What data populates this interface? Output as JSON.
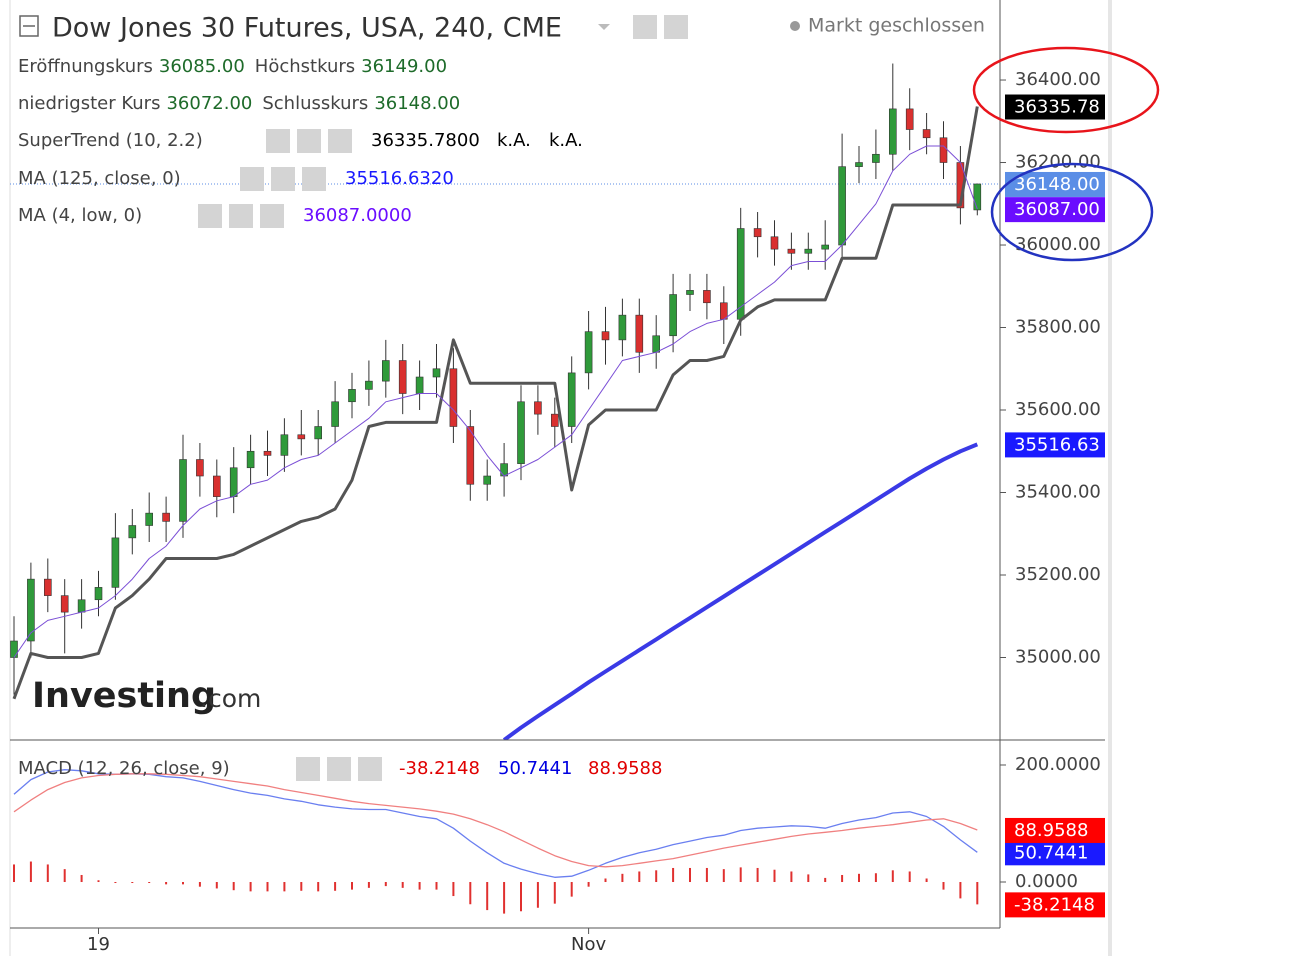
{
  "chart_data": [
    {
      "type": "candlestick",
      "title": "Dow Jones 30 Futures, USA, 240, CME",
      "status": "Markt geschlossen",
      "ohlc_header": [
        {
          "label": "Eröffnungskurs",
          "value": "36085.00"
        },
        {
          "label": "Höchstkurs",
          "value": "36149.00"
        },
        {
          "label": "niedrigster Kurs",
          "value": "36072.00"
        },
        {
          "label": "Schlusskurs",
          "value": "36148.00"
        }
      ],
      "categories": [
        null,
        null,
        null,
        null,
        null,
        "19",
        null,
        null,
        null,
        null,
        null,
        null,
        null,
        null,
        null,
        null,
        null,
        null,
        null,
        null,
        null,
        null,
        null,
        null,
        null,
        null,
        null,
        null,
        null,
        null,
        null,
        null,
        null,
        null,
        "Nov",
        null,
        null,
        null,
        null,
        null,
        null,
        null,
        null,
        null,
        null,
        null,
        null,
        null,
        null,
        null,
        null,
        null,
        null,
        null,
        null,
        null,
        null,
        null
      ],
      "open": [
        35000,
        35040,
        35190,
        35150,
        35110,
        35140,
        35170,
        35290,
        35320,
        35350,
        35330,
        35480,
        35440,
        35390,
        35460,
        35500,
        35490,
        35540,
        35530,
        35560,
        35620,
        35650,
        35670,
        35720,
        35640,
        35680,
        35700,
        35560,
        35420,
        35440,
        35470,
        35620,
        35590,
        35560,
        35690,
        35790,
        35770,
        35830,
        35740,
        35780,
        35880,
        35890,
        35860,
        35820,
        36040,
        36020,
        35990,
        35980,
        35990,
        36000,
        36190,
        36200,
        36220,
        36330,
        36280,
        36260,
        36200,
        36085
      ],
      "high": [
        35100,
        35230,
        35240,
        35190,
        35190,
        35210,
        35350,
        35360,
        35400,
        35390,
        35540,
        35520,
        35480,
        35510,
        35540,
        35550,
        35580,
        35600,
        35600,
        35670,
        35690,
        35720,
        35770,
        35760,
        35720,
        35760,
        35750,
        35600,
        35480,
        35520,
        35660,
        35660,
        35630,
        35730,
        35840,
        35850,
        35870,
        35870,
        35830,
        35930,
        35930,
        35930,
        35900,
        36090,
        36080,
        36060,
        36030,
        36030,
        36060,
        36270,
        36240,
        36280,
        36440,
        36380,
        36320,
        36300,
        36240,
        36149
      ],
      "low": [
        34910,
        35000,
        35110,
        35010,
        35070,
        35100,
        35140,
        35250,
        35280,
        35280,
        35290,
        35390,
        35340,
        35350,
        35420,
        35440,
        35450,
        35490,
        35490,
        35520,
        35580,
        35610,
        35630,
        35590,
        35600,
        35630,
        35520,
        35380,
        35380,
        35390,
        35430,
        35540,
        35510,
        35520,
        35650,
        35710,
        35730,
        35690,
        35700,
        35740,
        35840,
        35820,
        35760,
        35780,
        35970,
        35950,
        35940,
        35940,
        35940,
        35960,
        36150,
        36160,
        36180,
        36230,
        36220,
        36160,
        36050,
        36072
      ],
      "close": [
        35040,
        35190,
        35150,
        35110,
        35140,
        35170,
        35290,
        35320,
        35350,
        35330,
        35480,
        35440,
        35390,
        35460,
        35500,
        35490,
        35540,
        35530,
        35560,
        35620,
        35650,
        35670,
        35720,
        35640,
        35680,
        35700,
        35560,
        35420,
        35440,
        35470,
        35620,
        35590,
        35560,
        35690,
        35790,
        35770,
        35830,
        35740,
        35780,
        35880,
        35890,
        35860,
        35820,
        36040,
        36020,
        35990,
        35980,
        35990,
        36000,
        36190,
        36200,
        36220,
        36330,
        36280,
        36260,
        36200,
        36090,
        36148
      ],
      "up_color": "#2f9a3a",
      "down_color": "#d9302f",
      "close_tag": "36148.00",
      "close_tag_color": "#5b8ee6",
      "ylim": [
        34800,
        36594
      ],
      "yticks": [
        {
          "value": 35000,
          "label": "35000.00"
        },
        {
          "value": 35200,
          "label": "35200.00"
        },
        {
          "value": 35400,
          "label": "35400.00"
        },
        {
          "value": 35600,
          "label": "35600.00"
        },
        {
          "value": 35800,
          "label": "35800.00"
        },
        {
          "value": 36000,
          "label": "36000.00"
        },
        {
          "value": 36200,
          "label": "36200.00"
        },
        {
          "value": 36400,
          "label": "36400.00"
        }
      ],
      "series": [
        {
          "name": "SuperTrend (10, 2.2)",
          "color": "#555555",
          "width": 3,
          "values": [
            34900,
            35010,
            35000,
            35000,
            35000,
            35010,
            35120,
            35150,
            35190,
            35240,
            35240,
            35240,
            35240,
            35250,
            35270,
            35290,
            35310,
            35330,
            35340,
            35360,
            35430,
            35560,
            35570,
            35570,
            35570,
            35570,
            35770,
            35665,
            35665,
            35665,
            35665,
            35665,
            35665,
            35406,
            35564,
            35600,
            35600,
            35600,
            35600,
            35685,
            35720,
            35720,
            35730,
            35818,
            35850,
            35867,
            35867,
            35867,
            35867,
            35968,
            35968,
            35968,
            36097,
            36097,
            36097,
            36097,
            36097,
            36335.78
          ],
          "legend_value": "36335.7800",
          "legend_extra": [
            "k.A.",
            "k.A."
          ],
          "legend_color": "#000000",
          "tag": "36335.78",
          "tag_color": "#000000"
        },
        {
          "name": "MA (125, close, 0)",
          "color": "#3a3ae6",
          "width": 4,
          "values": [
            null,
            null,
            null,
            null,
            null,
            null,
            null,
            null,
            null,
            null,
            null,
            null,
            null,
            null,
            null,
            null,
            null,
            null,
            null,
            null,
            null,
            null,
            null,
            null,
            null,
            null,
            null,
            null,
            null,
            34800,
            34830,
            34858,
            34885,
            34912,
            34940,
            34966,
            34992,
            35018,
            35044,
            35070,
            35096,
            35122,
            35148,
            35174,
            35200,
            35226,
            35252,
            35278,
            35304,
            35330,
            35356,
            35382,
            35408,
            35434,
            35458,
            35480,
            35500,
            35516.632
          ],
          "legend_value": "35516.6320",
          "legend_color": "#1a1aff",
          "tag": "35516.63",
          "tag_color": "#1a1aff"
        },
        {
          "name": "MA (4, low, 0)",
          "color": "#7b4fd6",
          "width": 1,
          "values": [
            35000,
            35060,
            35090,
            35100,
            35110,
            35120,
            35150,
            35190,
            35240,
            35270,
            35320,
            35360,
            35380,
            35390,
            35420,
            35430,
            35460,
            35480,
            35490,
            35520,
            35550,
            35580,
            35620,
            35630,
            35640,
            35640,
            35600,
            35550,
            35490,
            35440,
            35460,
            35480,
            35510,
            35540,
            35600,
            35660,
            35720,
            35730,
            35740,
            35760,
            35790,
            35810,
            35820,
            35850,
            35880,
            35910,
            35950,
            35960,
            35960,
            36000,
            36050,
            36100,
            36180,
            36220,
            36240,
            36240,
            36200,
            36087
          ],
          "legend_value": "36087.0000",
          "legend_color": "#6a0dff",
          "tag": "36087.00",
          "tag_color": "#6a0dff"
        }
      ],
      "watermark": [
        "Investing",
        ".com"
      ]
    },
    {
      "type": "macd",
      "name": "MACD (12, 26, close, 9)",
      "ylim": [
        -78.6,
        242.7
      ],
      "yticks": [
        {
          "value": 0,
          "label": "0.0000"
        },
        {
          "value": 200,
          "label": "200.0000"
        }
      ],
      "series": [
        {
          "kind": "bar",
          "color": "#e0302f",
          "values": [
            30,
            35,
            30,
            22,
            12,
            3,
            0,
            0,
            -1,
            -4,
            -4,
            -8,
            -11,
            -14,
            -16,
            -16,
            -16,
            -15,
            -16,
            -15,
            -13,
            -10,
            -7,
            -10,
            -13,
            -13,
            -24,
            -38,
            -48,
            -54,
            -50,
            -44,
            -37,
            -25,
            -8,
            6,
            14,
            18,
            20,
            24,
            24,
            24,
            22,
            25,
            24,
            21,
            18,
            13,
            7,
            12,
            14,
            15,
            20,
            18,
            6,
            -13,
            -28,
            -38.2148
          ],
          "legend_value": "-38.2148",
          "legend_color": "#e00000",
          "tag": "-38.2148",
          "tag_color": "#ff0000"
        },
        {
          "kind": "line",
          "color": "#6a7ff0",
          "values": [
            150,
            175,
            188,
            192,
            190,
            185,
            184,
            185,
            184,
            180,
            178,
            172,
            165,
            158,
            152,
            148,
            142,
            138,
            132,
            128,
            125,
            124,
            124,
            118,
            112,
            108,
            92,
            70,
            50,
            32,
            22,
            14,
            8,
            10,
            20,
            32,
            42,
            50,
            56,
            64,
            70,
            76,
            80,
            88,
            92,
            94,
            96,
            95,
            92,
            100,
            106,
            110,
            118,
            120,
            112,
            95,
            72,
            50.7441
          ],
          "legend_value": "50.7441",
          "legend_color": "#0000e0",
          "tag": "50.7441",
          "tag_color": "#1a1aff"
        },
        {
          "kind": "line",
          "color": "#f08080",
          "values": [
            120,
            140,
            158,
            170,
            178,
            182,
            184,
            185,
            185,
            184,
            182,
            180,
            176,
            172,
            168,
            164,
            158,
            153,
            148,
            143,
            138,
            134,
            131,
            128,
            125,
            121,
            116,
            108,
            98,
            86,
            72,
            58,
            45,
            35,
            28,
            26,
            28,
            32,
            36,
            40,
            46,
            52,
            58,
            63,
            68,
            73,
            78,
            82,
            85,
            88,
            92,
            95,
            98,
            102,
            106,
            108,
            100,
            88.9588
          ],
          "legend_value": "88.9588",
          "legend_color": "#e00000",
          "tag": "88.9588",
          "tag_color": "#ff0000"
        }
      ]
    }
  ]
}
